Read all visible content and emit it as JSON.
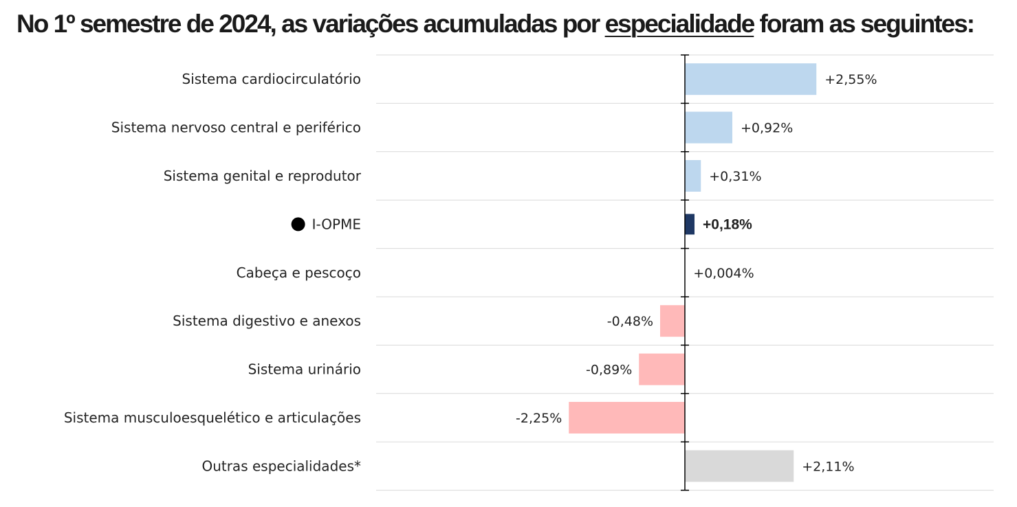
{
  "title": {
    "prefix": "No 1º semestre de 2024, as variações acumuladas por ",
    "emphasis": "especialidade",
    "suffix": " foram as seguintes:"
  },
  "chart_data": {
    "type": "bar",
    "orientation": "horizontal",
    "categories": [
      "Sistema cardiocirculatório",
      "Sistema nervoso central e periférico",
      "Sistema genital e reprodutor",
      "I-OPME",
      "Cabeça e pescoço",
      "Sistema digestivo e anexos",
      "Sistema urinário",
      "Sistema musculoesquelético e articulações",
      "Outras especialidades*"
    ],
    "values": [
      2.55,
      0.92,
      0.31,
      0.18,
      0.004,
      -0.48,
      -0.89,
      -2.25,
      2.11
    ],
    "value_labels": [
      "+2,55%",
      "+0,92%",
      "+0,31%",
      "+0,18%",
      "+0,004%",
      "-0,48%",
      "-0,89%",
      "-2,25%",
      "+2,11%"
    ],
    "highlight": [
      false,
      false,
      false,
      true,
      false,
      false,
      false,
      false,
      false
    ],
    "bar_colors": [
      "#bdd7ee",
      "#bdd7ee",
      "#bdd7ee",
      "#1f3864",
      "#bdd7ee",
      "#ffb9b9",
      "#ffb9b9",
      "#ffb9b9",
      "#d9d9d9"
    ],
    "marker_color": "#000000",
    "gridline_color": "#d9d9d9",
    "axis_color": "#000000",
    "xlim": [
      -6,
      6
    ],
    "grid": true,
    "legend": "none"
  }
}
